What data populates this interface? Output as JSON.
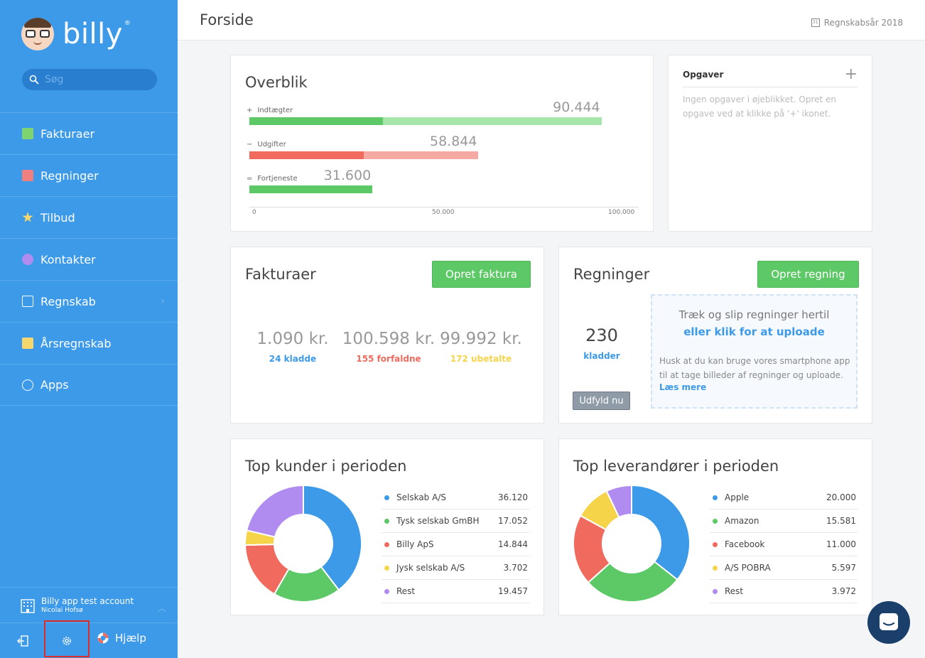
{
  "brand": {
    "name": "billy",
    "reg": "®"
  },
  "search": {
    "placeholder": "Søg"
  },
  "sidebar": {
    "items": [
      {
        "label": "Fakturaer",
        "icon": "invoice-icon",
        "color": "#7ed56f"
      },
      {
        "label": "Regninger",
        "icon": "bill-icon",
        "color": "#f07f7f"
      },
      {
        "label": "Tilbud",
        "icon": "star-icon",
        "color": "#f5d76e"
      },
      {
        "label": "Kontakter",
        "icon": "contact-icon",
        "color": "#b18cf0"
      },
      {
        "label": "Regnskab",
        "icon": "accounting-icon",
        "color": "#ffffff"
      },
      {
        "label": "Årsregnskab",
        "icon": "annual-report-icon",
        "color": "#f5d76e"
      },
      {
        "label": "Apps",
        "icon": "apps-icon",
        "color": "#ffffff"
      }
    ],
    "account": {
      "name": "Billy app test account",
      "user": "Nicolai Hofsø"
    },
    "help_label": "Hjælp"
  },
  "header": {
    "title": "Forside",
    "fiscal_year": "Regnskabsår 2018"
  },
  "overview": {
    "title": "Overblik",
    "rows": [
      {
        "sign": "+",
        "label": "Indtægter",
        "value": "90.444",
        "amount": 90444
      },
      {
        "sign": "−",
        "label": "Udgifter",
        "value": "58.844",
        "amount": 58844
      },
      {
        "sign": "=",
        "label": "Fortjeneste",
        "value": "31.600",
        "amount": 31600
      }
    ],
    "axis": [
      "0",
      "50.000",
      "100.000"
    ],
    "axis_max": 100000
  },
  "tasks": {
    "title": "Opgaver",
    "add": "+",
    "empty_text": "Ingen opgaver i øjeblikket. Opret en opgave ved at klikke på '+' ikonet."
  },
  "invoices": {
    "title": "Fakturaer",
    "create_button": "Opret faktura",
    "stats": [
      {
        "value": "1.090 kr.",
        "label": "24 kladde",
        "color": "#3d9ae8"
      },
      {
        "value": "100.598 kr.",
        "label": "155 forfaldne",
        "color": "#ee6b5e"
      },
      {
        "value": "99.992 kr.",
        "label": "172 ubetalte",
        "color": "#f5d44a"
      }
    ]
  },
  "bills": {
    "title": "Regninger",
    "create_button": "Opret regning",
    "drafts_value": "230",
    "drafts_label": "kladder",
    "fill_button": "Udfyld nu",
    "drop_line1": "Træk og slip regninger hertil",
    "drop_line2": "eller klik for at uploade",
    "drop_text": "Husk at du kan bruge vores smartphone app til at tage billeder af regninger og uploade.",
    "read_more": "Læs mere"
  },
  "top_customers": {
    "title": "Top kunder i perioden",
    "rows": [
      {
        "name": "Selskab A/S",
        "value": "36.120",
        "amount": 36120,
        "color": "#3d9ae8"
      },
      {
        "name": "Tysk selskab GmBH",
        "value": "17.052",
        "amount": 17052,
        "color": "#5cc866"
      },
      {
        "name": "Billy ApS",
        "value": "14.844",
        "amount": 14844,
        "color": "#f06b5e"
      },
      {
        "name": "Jysk selskab A/S",
        "value": "3.702",
        "amount": 3702,
        "color": "#f5d44a"
      },
      {
        "name": "Rest",
        "value": "19.457",
        "amount": 19457,
        "color": "#b18cf0"
      }
    ]
  },
  "top_suppliers": {
    "title": "Top leverandører i perioden",
    "rows": [
      {
        "name": "Apple",
        "value": "20.000",
        "amount": 20000,
        "color": "#3d9ae8"
      },
      {
        "name": "Amazon",
        "value": "15.581",
        "amount": 15581,
        "color": "#5cc866"
      },
      {
        "name": "Facebook",
        "value": "11.000",
        "amount": 11000,
        "color": "#f06b5e"
      },
      {
        "name": "A/S POBRA",
        "value": "5.597",
        "amount": 5597,
        "color": "#f5d44a"
      },
      {
        "name": "Rest",
        "value": "3.972",
        "amount": 3972,
        "color": "#b18cf0"
      }
    ]
  },
  "colors": {
    "sidebar": "#3d9ae8",
    "green": "#5cc866",
    "red": "#f06b5e",
    "light_green": "#a6e6a9",
    "light_red": "#f6a9a2"
  }
}
